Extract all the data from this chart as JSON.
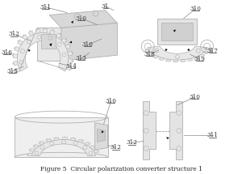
{
  "bg_color": "#ffffff",
  "lc": "#b0b0b0",
  "lc2": "#c8c8c8",
  "dc": "#404040",
  "fc": "#e8e8e8",
  "fc2": "#d8d8d8",
  "title": "Figure 5  Circular polarization converter structure 1",
  "title_fs": 5.5,
  "label_fs": 5.2,
  "label_color": "#333333",
  "underline_color": "#333333"
}
